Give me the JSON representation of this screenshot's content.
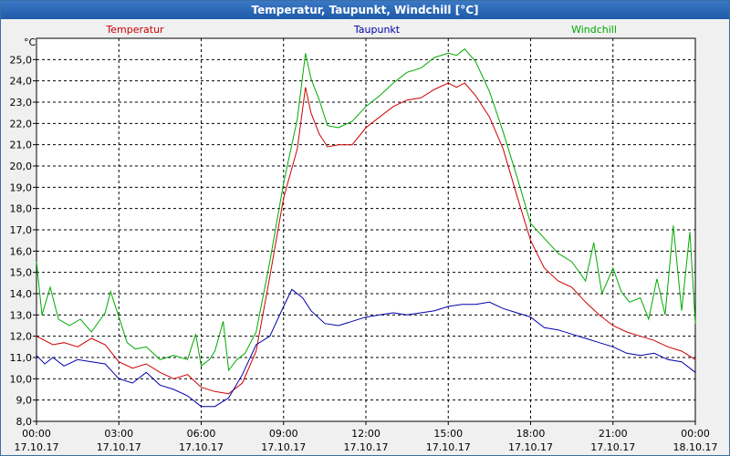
{
  "window": {
    "title": "Temperatur, Taupunkt, Windchill [°C]"
  },
  "chart_data": {
    "type": "line",
    "title": "Temperatur, Taupunkt, Windchill [°C]",
    "ylabel": "°C",
    "ylim": [
      8.0,
      26.0
    ],
    "xlim": [
      0,
      24
    ],
    "grid": true,
    "legend_placement": "top",
    "y_ticks": [
      "8,0",
      "9,0",
      "10,0",
      "11,0",
      "12,0",
      "13,0",
      "14,0",
      "15,0",
      "16,0",
      "17,0",
      "18,0",
      "19,0",
      "20,0",
      "21,0",
      "22,0",
      "23,0",
      "24,0",
      "25,0"
    ],
    "x_ticks": [
      {
        "time": "00:00",
        "date": "17.10.17"
      },
      {
        "time": "03:00",
        "date": "17.10.17"
      },
      {
        "time": "06:00",
        "date": "17.10.17"
      },
      {
        "time": "09:00",
        "date": "17.10.17"
      },
      {
        "time": "12:00",
        "date": "17.10.17"
      },
      {
        "time": "15:00",
        "date": "17.10.17"
      },
      {
        "time": "18:00",
        "date": "17.10.17"
      },
      {
        "time": "21:00",
        "date": "17.10.17"
      },
      {
        "time": "00:00",
        "date": "18.10.17"
      }
    ],
    "series": [
      {
        "name": "Temperatur",
        "color": "#cc0000",
        "x": [
          0,
          0.3,
          0.6,
          1,
          1.5,
          2,
          2.5,
          3,
          3.5,
          4,
          4.5,
          5,
          5.5,
          6,
          6.5,
          7,
          7.5,
          8,
          8.5,
          9,
          9.5,
          9.8,
          10,
          10.3,
          10.6,
          11,
          11.5,
          12,
          12.5,
          13,
          13.5,
          14,
          14.5,
          15,
          15.3,
          15.6,
          16,
          16.5,
          17,
          17.5,
          18,
          18.5,
          19,
          19.5,
          20,
          20.5,
          21,
          21.5,
          22,
          22.5,
          23,
          23.5,
          24
        ],
        "values": [
          12.0,
          11.8,
          11.6,
          11.7,
          11.5,
          11.9,
          11.6,
          10.8,
          10.5,
          10.7,
          10.3,
          10.0,
          10.2,
          9.6,
          9.4,
          9.3,
          9.8,
          11.3,
          14.8,
          18.5,
          20.8,
          23.7,
          22.5,
          21.5,
          20.9,
          21.0,
          21.0,
          21.8,
          22.3,
          22.8,
          23.1,
          23.2,
          23.6,
          23.9,
          23.7,
          23.9,
          23.3,
          22.3,
          20.8,
          18.6,
          16.5,
          15.2,
          14.6,
          14.3,
          13.6,
          13.0,
          12.5,
          12.2,
          12.0,
          11.8,
          11.5,
          11.3,
          10.9
        ]
      },
      {
        "name": "Taupunkt",
        "color": "#0000aa",
        "x": [
          0,
          0.3,
          0.6,
          1,
          1.5,
          2,
          2.5,
          3,
          3.5,
          4,
          4.5,
          5,
          5.5,
          6,
          6.5,
          7,
          7.5,
          8,
          8.5,
          9,
          9.3,
          9.7,
          10,
          10.5,
          11,
          11.5,
          12,
          12.5,
          13,
          13.5,
          14,
          14.5,
          15,
          15.5,
          16,
          16.5,
          17,
          17.5,
          18,
          18.5,
          19,
          19.5,
          20,
          20.5,
          21,
          21.5,
          22,
          22.5,
          23,
          23.5,
          24
        ],
        "values": [
          11.1,
          10.7,
          11.0,
          10.6,
          10.9,
          10.8,
          10.7,
          10.0,
          9.8,
          10.3,
          9.7,
          9.5,
          9.2,
          8.7,
          8.7,
          9.1,
          10.2,
          11.6,
          12.0,
          13.4,
          14.2,
          13.8,
          13.2,
          12.6,
          12.5,
          12.7,
          12.9,
          13.0,
          13.1,
          13.0,
          13.1,
          13.2,
          13.4,
          13.5,
          13.5,
          13.6,
          13.3,
          13.1,
          12.9,
          12.4,
          12.3,
          12.1,
          11.9,
          11.7,
          11.5,
          11.2,
          11.1,
          11.2,
          10.9,
          10.8,
          10.3
        ]
      },
      {
        "name": "Windchill",
        "color": "#00aa00",
        "x": [
          0,
          0.2,
          0.5,
          0.8,
          1.2,
          1.6,
          2,
          2.5,
          2.7,
          3,
          3.3,
          3.6,
          4,
          4.5,
          5,
          5.5,
          5.8,
          6,
          6.3,
          6.5,
          6.8,
          7,
          7.3,
          7.6,
          8,
          8.5,
          9,
          9.5,
          9.8,
          10,
          10.3,
          10.6,
          11,
          11.5,
          12,
          12.5,
          13,
          13.5,
          14,
          14.5,
          15,
          15.3,
          15.6,
          16,
          16.5,
          17,
          17.5,
          18,
          18.5,
          19,
          19.5,
          20,
          20.3,
          20.6,
          21,
          21.3,
          21.6,
          22,
          22.3,
          22.6,
          22.9,
          23.2,
          23.5,
          23.8,
          24
        ],
        "values": [
          15.5,
          13.0,
          14.3,
          12.8,
          12.5,
          12.8,
          12.2,
          13.1,
          14.1,
          12.9,
          11.7,
          11.4,
          11.5,
          10.9,
          11.1,
          10.9,
          12.1,
          10.6,
          10.9,
          11.3,
          12.7,
          10.4,
          10.9,
          11.2,
          12.2,
          15.5,
          19.2,
          22.2,
          25.3,
          24.1,
          23.1,
          21.9,
          21.8,
          22.1,
          22.8,
          23.3,
          23.9,
          24.4,
          24.6,
          25.1,
          25.3,
          25.2,
          25.5,
          24.9,
          23.5,
          21.6,
          19.5,
          17.3,
          16.6,
          15.9,
          15.5,
          14.6,
          16.4,
          14.0,
          15.2,
          14.1,
          13.6,
          13.8,
          12.8,
          14.7,
          13.0,
          17.2,
          13.2,
          16.9,
          12.6
        ]
      }
    ]
  }
}
